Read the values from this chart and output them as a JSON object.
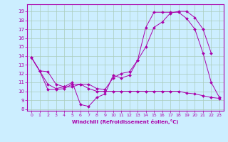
{
  "xlabel": "Windchill (Refroidissement éolien,°C)",
  "background_color": "#cceeff",
  "grid_color": "#aaccbb",
  "line_color": "#aa00aa",
  "xlim": [
    -0.5,
    23.5
  ],
  "ylim": [
    7.8,
    19.8
  ],
  "yticks": [
    8,
    9,
    10,
    11,
    12,
    13,
    14,
    15,
    16,
    17,
    18,
    19
  ],
  "xticks": [
    0,
    1,
    2,
    3,
    4,
    5,
    6,
    7,
    8,
    9,
    10,
    11,
    12,
    13,
    14,
    15,
    16,
    17,
    18,
    19,
    20,
    21,
    22,
    23
  ],
  "line1_x": [
    0,
    1,
    2,
    3,
    4,
    5,
    6,
    7,
    8,
    9,
    10,
    11,
    12,
    13,
    14,
    15,
    16,
    17,
    18,
    19,
    20,
    21,
    22
  ],
  "line1_y": [
    13.8,
    12.3,
    12.2,
    10.8,
    10.5,
    10.5,
    10.8,
    10.8,
    10.3,
    10.2,
    11.5,
    12.0,
    12.2,
    13.5,
    15.0,
    17.2,
    17.8,
    18.8,
    19.0,
    19.0,
    18.3,
    17.0,
    14.3
  ],
  "line2_x": [
    0,
    1,
    2,
    3,
    4,
    5,
    6,
    7,
    8,
    9,
    10,
    11,
    12,
    13,
    14,
    15,
    16,
    17,
    18,
    19,
    20,
    21,
    22,
    23
  ],
  "line2_y": [
    13.8,
    12.3,
    10.8,
    10.3,
    10.5,
    11.0,
    8.5,
    8.3,
    9.3,
    9.7,
    11.8,
    11.5,
    11.8,
    13.5,
    17.2,
    18.9,
    18.9,
    18.9,
    18.9,
    18.2,
    17.0,
    14.3,
    11.0,
    9.3
  ],
  "line3_x": [
    0,
    1,
    2,
    3,
    4,
    5,
    6,
    7,
    8,
    9,
    10,
    11,
    12,
    13,
    14,
    15,
    16,
    17,
    18,
    19,
    20,
    21,
    22,
    23
  ],
  "line3_y": [
    13.8,
    12.3,
    10.2,
    10.2,
    10.3,
    10.8,
    10.8,
    10.3,
    10.0,
    10.0,
    10.0,
    10.0,
    10.0,
    10.0,
    10.0,
    10.0,
    10.0,
    10.0,
    10.0,
    9.8,
    9.7,
    9.5,
    9.3,
    9.2
  ]
}
